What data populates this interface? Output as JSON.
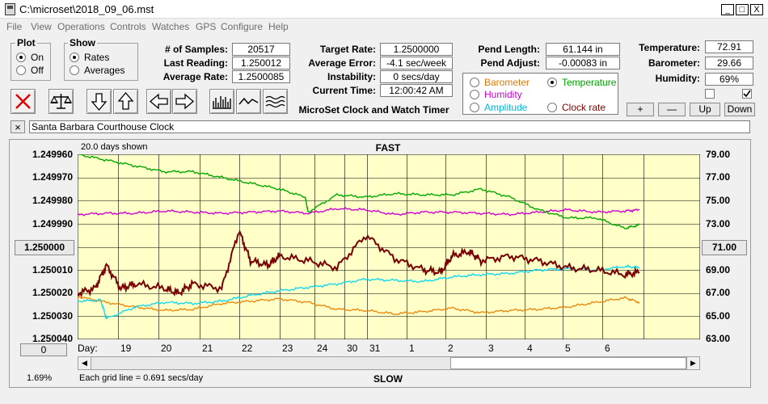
{
  "window": {
    "title": "C:\\microset\\2018_09_06.mst",
    "min": "_",
    "max": "□",
    "close": "X"
  },
  "menu": [
    "File",
    "View",
    "Operations",
    "Controls",
    "Watches",
    "GPS",
    "Configure",
    "Help"
  ],
  "plot_group": {
    "title": "Plot",
    "options": [
      "On",
      "Off"
    ],
    "selected": "On"
  },
  "show_group": {
    "title": "Show",
    "options": [
      "Rates",
      "Averages"
    ],
    "selected": "Rates"
  },
  "stats": {
    "samples_label": "# of Samples:",
    "samples": "20517",
    "last_reading_label": "Last Reading:",
    "last_reading": "1.250012",
    "average_rate_label": "Average Rate:",
    "average_rate": "1.2500085",
    "target_rate_label": "Target Rate:",
    "target_rate": "1.2500000",
    "average_error_label": "Average Error:",
    "average_error": "-4.1 sec/week",
    "instability_label": "Instability:",
    "instability": "0 secs/day",
    "current_time_label": "Current Time:",
    "current_time": "12:00:42 AM",
    "pend_length_label": "Pend Length:",
    "pend_length": "61.144 in",
    "pend_adjust_label": "Pend Adjust:",
    "pend_adjust": "-0.00083 in",
    "temperature_label": "Temperature:",
    "temperature": "72.91",
    "barometer_label": "Barometer:",
    "barometer": "29.66",
    "humidity_label": "Humidity:",
    "humidity": "69%"
  },
  "app_caption": "MicroSet Clock and Watch Timer",
  "aux_options": [
    {
      "label": "Barometer",
      "color": "#e07800",
      "selected": false
    },
    {
      "label": "Temperature",
      "color": "#00a000",
      "selected": true
    },
    {
      "label": "Humidity",
      "color": "#d000d0",
      "selected": false
    },
    {
      "label": "Amplitude",
      "color": "#00c8e0",
      "selected": false
    },
    {
      "label": "Clock rate",
      "color": "#800000",
      "selected": false
    }
  ],
  "scale_buttons": {
    "plus": "+",
    "minus": "—",
    "up": "Up",
    "down": "Down"
  },
  "toolbar_icons": [
    "clear-x-icon",
    "balance-scale-icon",
    "arrow-down-icon",
    "arrow-up-icon",
    "arrow-left-icon",
    "arrow-right-icon",
    "bar-chart-icon",
    "wave-icon",
    "multi-wave-icon"
  ],
  "clock_name": "Santa Barbara Courthouse Clock",
  "close_name_btn": "×",
  "chart_data": {
    "type": "line",
    "title_top": "FAST",
    "title_bottom": "SLOW",
    "days_shown": "20.0 days shown",
    "grid_note": "Each grid line = 0.691 secs/day",
    "left_ticks": [
      "1.249960",
      "1.249970",
      "1.249980",
      "1.249990",
      "1.250000",
      "1.250010",
      "1.250020",
      "1.250030",
      "1.250040"
    ],
    "left_selected": "1.250000",
    "right_ticks": [
      "79.00",
      "77.00",
      "75.00",
      "73.00",
      "71.00",
      "69.00",
      "67.00",
      "65.00",
      "63.00"
    ],
    "right_selected": "71.00",
    "left_ylim": [
      1.24996,
      1.25004
    ],
    "right_ylim": [
      63,
      79
    ],
    "x_label": "Day:",
    "x_days": [
      "19",
      "20",
      "21",
      "22",
      "23",
      "24",
      "30",
      "31",
      "1",
      "2",
      "3",
      "4",
      "5",
      "6"
    ],
    "x_range": [
      0,
      20
    ],
    "scroll_value": "0",
    "percent": "1.69%",
    "series": [
      {
        "name": "Clock rate",
        "color": "#780000",
        "axis": "left",
        "x": [
          0,
          0.6,
          1,
          1.5,
          2,
          3,
          3.5,
          4,
          5,
          5.6,
          6,
          6.6,
          7,
          8,
          9,
          10,
          11,
          12,
          12.6,
          13,
          13.6,
          14,
          15,
          16,
          17,
          18,
          19,
          19.5
        ],
        "values": [
          1.25002,
          1.250018,
          1.250008,
          1.250018,
          1.250016,
          1.250018,
          1.25002,
          1.250016,
          1.250018,
          1.249993,
          1.250006,
          1.250008,
          1.250004,
          1.250006,
          1.250009,
          1.249995,
          1.250005,
          1.25001,
          1.250011,
          1.250004,
          1.250002,
          1.250006,
          1.250004,
          1.250006,
          1.250009,
          1.25001,
          1.250012,
          1.250011
        ]
      },
      {
        "name": "Temperature",
        "color": "#00a800",
        "axis": "right",
        "x": [
          0,
          1,
          2,
          3,
          4,
          5,
          6,
          7,
          7.9,
          8,
          9,
          10,
          11,
          12,
          13,
          14,
          15,
          16,
          17,
          18,
          19,
          19.5
        ],
        "values": [
          79,
          78.5,
          78,
          77.5,
          77.5,
          77,
          76.5,
          76,
          75.3,
          74,
          75.5,
          75.3,
          75.6,
          75.5,
          75.5,
          76,
          75.3,
          74.2,
          73.5,
          73.5,
          72.6,
          72.9
        ]
      },
      {
        "name": "Humidity",
        "color": "#d000d0",
        "axis": "right",
        "x": [
          0,
          1,
          2,
          3,
          4,
          5,
          6,
          7,
          8,
          9,
          10,
          11,
          12,
          13,
          14,
          15,
          16,
          17,
          18,
          19,
          19.5
        ],
        "values": [
          73.8,
          73.9,
          73.9,
          74.1,
          74,
          73.9,
          74,
          74.1,
          73.9,
          74.3,
          74.2,
          73.8,
          74,
          74,
          73.9,
          73.8,
          74,
          74.2,
          74,
          74.1,
          74.2
        ]
      },
      {
        "name": "Amplitude",
        "color": "#10d8f0",
        "axis": "right",
        "x": [
          0,
          0.8,
          1,
          2,
          3,
          4,
          5,
          6,
          7,
          8,
          9,
          10,
          11,
          12,
          13,
          14,
          15,
          16,
          17,
          18,
          19,
          19.5
        ],
        "values": [
          66.3,
          66.4,
          64.8,
          65.8,
          66.2,
          66.1,
          66.3,
          66.8,
          67.2,
          67.5,
          67.8,
          68.2,
          68.1,
          68,
          68.4,
          68.6,
          68.7,
          69,
          69.1,
          69,
          69.3,
          69.2
        ]
      },
      {
        "name": "Barometer",
        "color": "#e88a10",
        "axis": "right",
        "x": [
          0,
          1,
          2,
          3,
          4,
          5,
          6,
          7,
          8,
          9,
          10,
          11,
          12,
          13,
          14,
          15,
          16,
          17,
          18,
          19,
          19.5
        ],
        "values": [
          66.7,
          66.2,
          65.8,
          65.5,
          65.6,
          66.1,
          66.3,
          66.5,
          66.2,
          65.6,
          65.5,
          65.2,
          65.4,
          65.7,
          65.3,
          65.5,
          65.6,
          65.8,
          66.2,
          66.6,
          66.2
        ]
      }
    ]
  },
  "colors": {
    "plot_bg": "#ffffc8",
    "window_bg": "#f0f0f0"
  }
}
